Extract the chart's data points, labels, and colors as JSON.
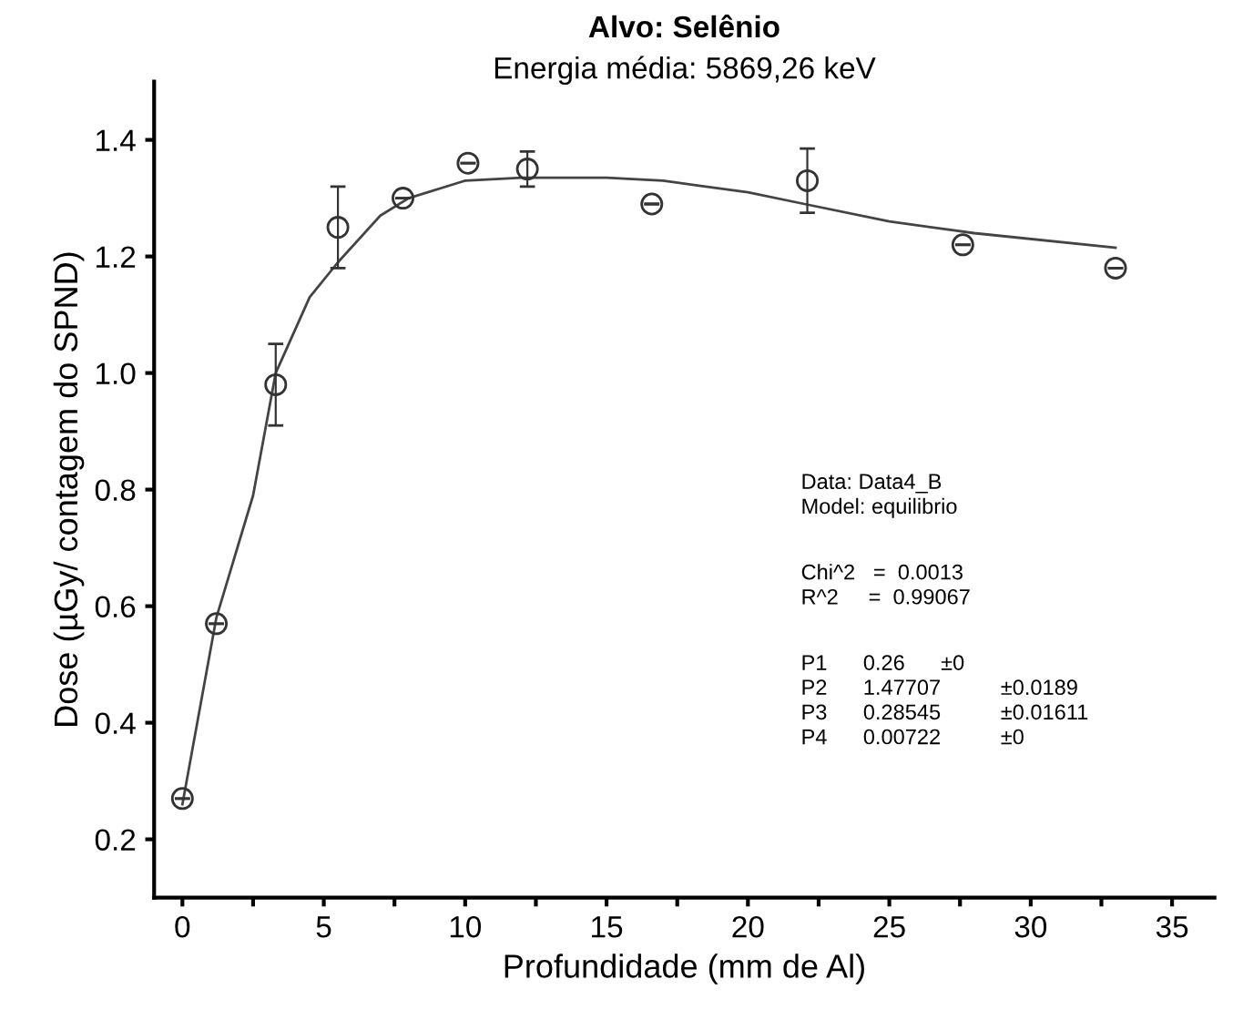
{
  "chart_data": {
    "type": "scatter",
    "title": "Alvo: Selênio",
    "subtitle": "Energia média: 5869,26 keV",
    "xlabel": "Profundidade (mm de Al)",
    "ylabel": "Dose (µGy/ contagem do SPND)",
    "series": [
      {
        "color": "#333333",
        "marker": "circle",
        "x": [
          0,
          1.2,
          3.3,
          5.5,
          7.8,
          10.1,
          12.2,
          16.6,
          22.1,
          27.6,
          33.0
        ],
        "values": [
          0.27,
          0.57,
          0.98,
          1.25,
          1.3,
          1.36,
          1.35,
          1.29,
          1.33,
          1.22,
          1.18
        ],
        "errors": [
          null,
          null,
          0.07,
          0.07,
          null,
          null,
          0.03,
          null,
          0.055,
          null,
          null
        ]
      },
      {
        "type": "line",
        "color": "#444444",
        "marker": "none",
        "line_style": "solid",
        "x": [
          0,
          1.2,
          2.5,
          3.3,
          4.5,
          5.5,
          7,
          8,
          10,
          12,
          15,
          17,
          20,
          22,
          25,
          28,
          33
        ],
        "values": [
          0.26,
          0.58,
          0.79,
          1.0,
          1.13,
          1.19,
          1.27,
          1.3,
          1.33,
          1.335,
          1.335,
          1.33,
          1.31,
          1.29,
          1.26,
          1.24,
          1.215
        ]
      }
    ],
    "xlim": [
      -1,
      36.5
    ],
    "ylim": [
      0.1,
      1.5
    ],
    "xticks": [
      0,
      {
        "value": 2.5,
        "label": null
      },
      5,
      {
        "value": 7.5,
        "label": null
      },
      10,
      {
        "value": 12.5,
        "label": null
      },
      15,
      {
        "value": 17.5,
        "label": null
      },
      20,
      {
        "value": 22.5,
        "label": null
      },
      25,
      {
        "value": 27.5,
        "label": null
      },
      30,
      {
        "value": 32.5,
        "label": null
      },
      35
    ],
    "yticks": [
      0.2,
      0.4,
      0.6,
      0.8,
      {
        "value": 1.0,
        "label": "1.0"
      },
      1.2,
      1.4
    ],
    "grid": false,
    "legend": false,
    "annotations": [
      "Data: Data4_B\nModel: equilibrio",
      "Chi^2   =  0.0013\nR^2     =  0.99067",
      "P1      0.26      ±0\nP2      1.47707          ±0.0189\nP3      0.28545          ±0.01611\nP4      0.00722          ±0"
    ]
  }
}
